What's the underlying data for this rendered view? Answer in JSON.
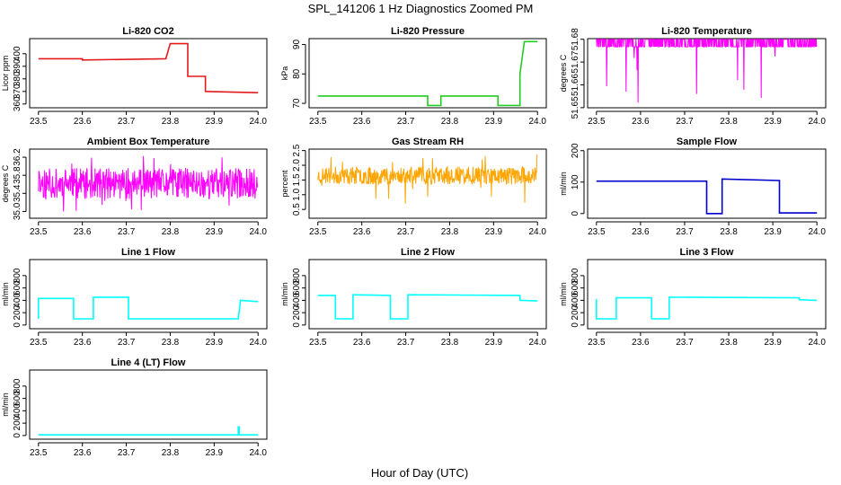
{
  "figure": {
    "title": "SPL_141206  1 Hz Diagnostics Zoomed PM",
    "xlabel": "Hour of Day (UTC)"
  },
  "colors": {
    "red": "#e31a1c",
    "green": "#22cc22",
    "magenta": "#ff00ff",
    "orange": "#ffa500",
    "blue": "#0000cc",
    "cyan": "#00ffff"
  },
  "chart_data": [
    {
      "type": "line",
      "title": "Li-820 CO2",
      "ylabel": "Licor ppm",
      "color": "red",
      "xlim": [
        23.48,
        24.02
      ],
      "ylim": [
        357,
        412
      ],
      "xticks": [
        "23.5",
        "23.6",
        "23.7",
        "23.8",
        "23.9",
        "24.0"
      ],
      "yticks": [
        "360",
        "370",
        "380",
        "390",
        "400"
      ],
      "x": [
        23.5,
        23.6,
        23.6,
        23.79,
        23.79,
        23.8,
        23.8,
        23.84,
        23.84,
        23.88,
        23.88,
        24.0
      ],
      "y": [
        396,
        396,
        395,
        396,
        396,
        408,
        408,
        408,
        382,
        382,
        370,
        369
      ]
    },
    {
      "type": "line",
      "title": "Li-820 Pressure",
      "ylabel": "kPa",
      "color": "green",
      "xlim": [
        23.48,
        24.02
      ],
      "ylim": [
        68.5,
        92
      ],
      "xticks": [
        "23.5",
        "23.6",
        "23.7",
        "23.8",
        "23.9",
        "24.0"
      ],
      "yticks": [
        "70",
        "80",
        "90"
      ],
      "x": [
        23.5,
        23.75,
        23.75,
        23.78,
        23.78,
        23.91,
        23.91,
        23.96,
        23.96,
        23.97,
        24.0
      ],
      "y": [
        72.5,
        72.5,
        69.3,
        69.3,
        72.5,
        72.5,
        69.3,
        69.3,
        80,
        91,
        91
      ]
    },
    {
      "type": "line",
      "title": "Li-820 Temperature",
      "ylabel": "degrees C",
      "color": "magenta",
      "xlim": [
        23.48,
        24.02
      ],
      "ylim": [
        51.64995,
        51.68028
      ],
      "xticks": [
        "23.5",
        "23.6",
        "23.7",
        "23.8",
        "23.9",
        "24.0"
      ],
      "yticks": [
        "51.65",
        "51.66",
        "51.67",
        "51.68"
      ],
      "x": [
        23.5,
        24.0
      ],
      "y": [
        51.68,
        51.6767
      ]
    },
    {
      "type": "line",
      "title": "Ambient Box Temperature",
      "ylabel": "degrees C",
      "color": "magenta",
      "xlim": [
        23.48,
        24.02
      ],
      "ylim": [
        34.85,
        36.38
      ],
      "xticks": [
        "23.5",
        "23.6",
        "23.7",
        "23.8",
        "23.9",
        "24.0"
      ],
      "yticks": [
        "35.0",
        "35.4",
        "35.8",
        "36.2"
      ],
      "x": [
        23.5,
        24.0
      ],
      "y": [
        35.6,
        35.6
      ]
    },
    {
      "type": "line",
      "title": "Gas Stream RH",
      "ylabel": "percent",
      "color": "orange",
      "xlim": [
        23.48,
        24.02
      ],
      "ylim": [
        0.2,
        2.55
      ],
      "xticks": [
        "23.5",
        "23.6",
        "23.7",
        "23.8",
        "23.9",
        "24.0"
      ],
      "yticks": [
        "0.5",
        "1.0",
        "1.5",
        "2.0",
        "2.5"
      ],
      "x": [
        23.5,
        24.0
      ],
      "y": [
        1.7,
        1.7
      ]
    },
    {
      "type": "line",
      "title": "Sample Flow",
      "ylabel": "ml/min",
      "color": "blue",
      "xlim": [
        23.48,
        24.02
      ],
      "ylim": [
        -15,
        205
      ],
      "xticks": [
        "23.5",
        "23.6",
        "23.7",
        "23.8",
        "23.9",
        "24.0"
      ],
      "yticks": [
        "0",
        "100",
        "200"
      ],
      "x": [
        23.5,
        23.75,
        23.75,
        23.785,
        23.785,
        23.915,
        23.915,
        24.0
      ],
      "y": [
        103,
        103,
        0,
        0,
        110,
        105,
        2,
        2
      ]
    },
    {
      "type": "line",
      "title": "Line 1 Flow",
      "ylabel": "ml/min",
      "color": "cyan",
      "xlim": [
        23.48,
        24.02
      ],
      "ylim": [
        -60,
        1060
      ],
      "xticks": [
        "23.5",
        "23.6",
        "23.7",
        "23.8",
        "23.9",
        "24.0"
      ],
      "yticks": [
        "0",
        "200",
        "400",
        "600",
        "800"
      ],
      "x": [
        23.5,
        23.5,
        23.58,
        23.58,
        23.625,
        23.625,
        23.705,
        23.705,
        23.955,
        23.96,
        24.0
      ],
      "y": [
        100,
        430,
        430,
        100,
        100,
        450,
        450,
        100,
        100,
        400,
        380
      ]
    },
    {
      "type": "line",
      "title": "Line 2 Flow",
      "ylabel": "ml/min",
      "color": "cyan",
      "xlim": [
        23.48,
        24.02
      ],
      "ylim": [
        -60,
        1060
      ],
      "xticks": [
        "23.5",
        "23.6",
        "23.7",
        "23.8",
        "23.9",
        "24.0"
      ],
      "yticks": [
        "0",
        "200",
        "400",
        "600",
        "800"
      ],
      "x": [
        23.5,
        23.54,
        23.54,
        23.58,
        23.58,
        23.665,
        23.665,
        23.705,
        23.705,
        23.96,
        23.96,
        24.0
      ],
      "y": [
        480,
        480,
        100,
        100,
        490,
        480,
        100,
        100,
        490,
        480,
        400,
        390
      ]
    },
    {
      "type": "line",
      "title": "Line 3 Flow",
      "ylabel": "ml/min",
      "color": "cyan",
      "xlim": [
        23.48,
        24.02
      ],
      "ylim": [
        -60,
        1060
      ],
      "xticks": [
        "23.5",
        "23.6",
        "23.7",
        "23.8",
        "23.9",
        "24.0"
      ],
      "yticks": [
        "0",
        "200",
        "400",
        "600",
        "800"
      ],
      "x": [
        23.5,
        23.5,
        23.545,
        23.545,
        23.625,
        23.625,
        23.665,
        23.665,
        23.96,
        23.96,
        24.0
      ],
      "y": [
        420,
        100,
        100,
        440,
        440,
        100,
        100,
        450,
        440,
        410,
        400
      ]
    },
    {
      "type": "line",
      "title": "Line 4 (LT) Flow",
      "ylabel": "ml/min",
      "color": "cyan",
      "xlim": [
        23.48,
        24.02
      ],
      "ylim": [
        -60,
        1060
      ],
      "xticks": [
        "23.5",
        "23.6",
        "23.7",
        "23.8",
        "23.9",
        "24.0"
      ],
      "yticks": [
        "0",
        "200",
        "400",
        "600",
        "800"
      ],
      "x": [
        23.5,
        23.955,
        23.955,
        23.957,
        23.957,
        24.0
      ],
      "y": [
        10,
        10,
        140,
        140,
        10,
        10
      ]
    }
  ]
}
